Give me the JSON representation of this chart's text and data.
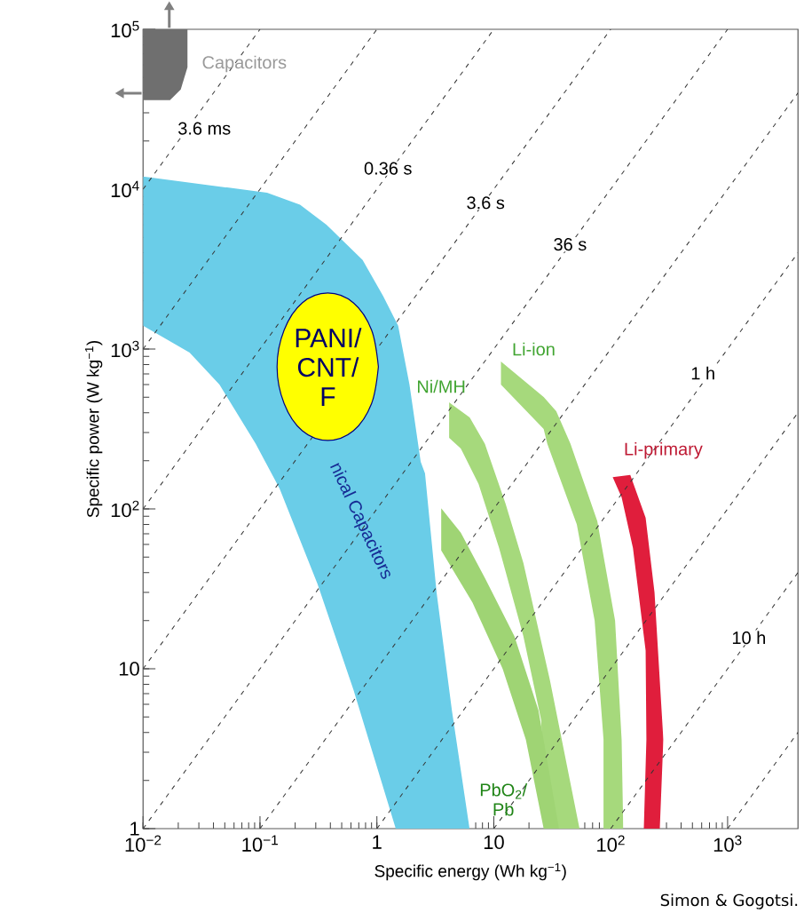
{
  "chart_data": {
    "type": "area",
    "xlabel": "Specific energy (Wh kg$^{−1}$)",
    "ylabel": "Specific power (W kg$^{−1}$)",
    "log": "xy",
    "xlim": [
      0.01,
      4000
    ],
    "ylim": [
      1,
      100000
    ],
    "xticks": [
      {
        "value": 0.01,
        "label": "10$^{−2}$"
      },
      {
        "value": 0.1,
        "label": "10$^{−1}$"
      },
      1,
      10,
      {
        "value": 100,
        "label": "10$^{2}$"
      },
      {
        "value": 1000,
        "label": "10$^{3}$"
      }
    ],
    "yticks": [
      1,
      10,
      {
        "value": 100,
        "label": "10$^{2}$"
      },
      {
        "value": 1000,
        "label": "10$^{3}$"
      },
      {
        "value": 10000,
        "label": "10$^{4}$"
      },
      {
        "value": 100000,
        "label": "10$^{5}$"
      }
    ],
    "series": [
      {
        "name": "Capacitors",
        "color": "#6f6f6f",
        "x": [
          0.01,
          0.024,
          0.024,
          0.021,
          0.017,
          0.01
        ],
        "values": [
          100000,
          100000,
          58000,
          42000,
          36000,
          36000
        ]
      },
      {
        "name": "nical Capacitors",
        "color": "#6acde8",
        "x": [
          0.01,
          0.115,
          0.22,
          0.37,
          0.755,
          1.13,
          1.52,
          1.9,
          2.37,
          2.58,
          3.24,
          4.38,
          6.2,
          1.45,
          0.63,
          0.31,
          0.147,
          0.092,
          0.045,
          0.025,
          0.01
        ],
        "values": [
          12000,
          9500,
          8000,
          6000,
          3600,
          2150,
          1400,
          600,
          197,
          167,
          30,
          5.5,
          1,
          1,
          7.4,
          34,
          134,
          255,
          600,
          950,
          1400
        ]
      },
      {
        "name": "Ni/MH",
        "color": "#a6d97c",
        "x": [
          4.15,
          6.22,
          8.39,
          12.6,
          17.9,
          30.3,
          54.1,
          27.7,
          25.4,
          17.9,
          11.1,
          7.41,
          5.22,
          4.15
        ],
        "values": [
          464,
          373,
          255,
          108,
          46,
          8.4,
          1,
          1,
          4.8,
          16,
          57,
          143,
          239,
          278
        ]
      },
      {
        "name": "Li-ion",
        "color": "#a6d97c",
        "x": [
          11.5,
          26.7,
          34.2,
          45.3,
          76.8,
          109,
          124,
          128,
          86.8,
          86.8,
          72.9,
          51.3,
          28.7,
          26.7,
          11.5
        ],
        "values": [
          836,
          501,
          408,
          255,
          84,
          20,
          3.6,
          1,
          1,
          3.6,
          20,
          80,
          255,
          316,
          600
        ]
      },
      {
        "name": "PbO$_{2}$/Pb",
        "color": "#9fd474",
        "x": [
          3.55,
          5.22,
          8.39,
          15.0,
          24.1,
          36.1,
          26.7,
          18.8,
          11.9,
          6.56,
          3.55
        ],
        "values": [
          101,
          71,
          37,
          16,
          5.5,
          1,
          1,
          3.6,
          10,
          26,
          55
        ]
      },
      {
        "name": "Li-primary",
        "color": "#e01e3c",
        "x": [
          104,
          147,
          199,
          237,
          282,
          263,
          192,
          202,
          199,
          155,
          124
        ],
        "values": [
          158,
          163,
          88,
          30,
          3.6,
          1,
          1,
          3.6,
          13,
          57,
          118
        ]
      },
      {
        "type": "line",
        "line_style": "dashed",
        "color": "#333333",
        "x": [
          0.01,
          0.1
        ],
        "values": [
          10000,
          100000
        ]
      },
      {
        "type": "line",
        "line_style": "dashed",
        "color": "#333333",
        "x": [
          0.01,
          1
        ],
        "values": [
          1000,
          100000
        ]
      },
      {
        "type": "line",
        "line_style": "dashed",
        "color": "#333333",
        "x": [
          0.01,
          10
        ],
        "values": [
          100,
          100000
        ]
      },
      {
        "type": "line",
        "line_style": "dashed",
        "color": "#333333",
        "x": [
          0.01,
          100
        ],
        "values": [
          10,
          100000
        ]
      },
      {
        "type": "line",
        "line_style": "dashed",
        "color": "#333333",
        "x": [
          0.01,
          1000
        ],
        "values": [
          1,
          100000
        ]
      },
      {
        "type": "line",
        "line_style": "dashed",
        "color": "#333333",
        "x": [
          0.1,
          4000
        ],
        "values": [
          1,
          40000
        ]
      },
      {
        "type": "line",
        "line_style": "dashed",
        "color": "#333333",
        "x": [
          1,
          4000
        ],
        "values": [
          1,
          4000
        ]
      },
      {
        "type": "line",
        "line_style": "dashed",
        "color": "#333333",
        "x": [
          10,
          4000
        ],
        "values": [
          1,
          400
        ]
      },
      {
        "type": "line",
        "line_style": "dashed",
        "color": "#333333",
        "x": [
          100,
          4000
        ],
        "values": [
          1,
          40
        ]
      },
      {
        "type": "line",
        "line_style": "dashed",
        "color": "#333333",
        "x": [
          1000,
          4000
        ],
        "values": [
          1,
          4
        ]
      },
      {
        "name": "PANI/CNT/F",
        "color": "#ffff00",
        "x": [
          1.03,
          0.9,
          0.63,
          0.38,
          0.23,
          0.161,
          0.14,
          0.161,
          0.23,
          0.38,
          0.63,
          0.9
        ],
        "values": [
          774,
          1316,
          1945,
          2240,
          1945,
          1316,
          774,
          455,
          308,
          268,
          308,
          455
        ]
      }
    ],
    "annotations": [
      "3.6 ms",
      "0.36 s",
      "3.6 s",
      "36 s",
      "1 h",
      "10 h",
      "Simon & Gogotsi."
    ]
  }
}
